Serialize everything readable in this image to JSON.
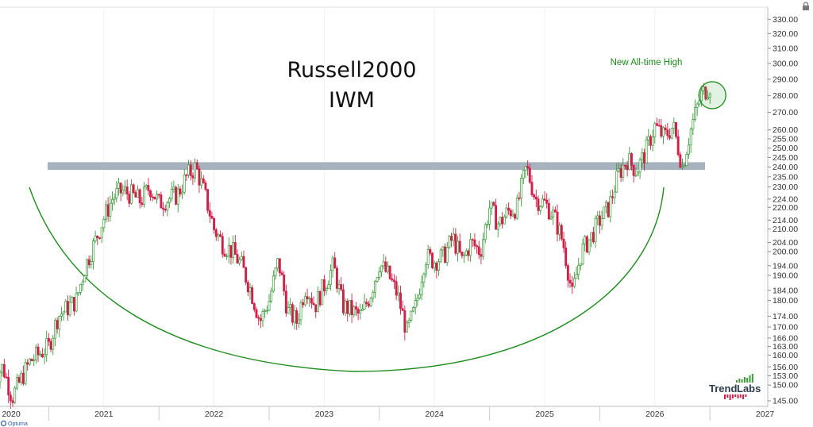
{
  "chart_data": {
    "type": "candlestick",
    "title": "Russell2000",
    "subtitle": "IWM",
    "x_labels": [
      "2020",
      "2021",
      "2022",
      "2023",
      "2024",
      "2025",
      "2026",
      "2027"
    ],
    "y_ticks": [
      145,
      150,
      153,
      156,
      160,
      163,
      166,
      170,
      174,
      180,
      184,
      190,
      194,
      200,
      204,
      210,
      214,
      220,
      224,
      230,
      235,
      240,
      245,
      250,
      255,
      260,
      270,
      280,
      290,
      300,
      310,
      320,
      330
    ],
    "y_tick_labels": [
      "145.00",
      "150.00",
      "153.00",
      "156.00",
      "160.00",
      "163.00",
      "166.00",
      "170.00",
      "174.00",
      "180.00",
      "184.00",
      "190.00",
      "194.00",
      "200.00",
      "204.00",
      "210.00",
      "214.00",
      "220.00",
      "224.00",
      "230.00",
      "235.00",
      "240.00",
      "245.00",
      "250.00",
      "255.00",
      "260.00",
      "270.00",
      "280.00",
      "290.00",
      "300.00",
      "310.00",
      "320.00",
      "330.00"
    ],
    "ylim": [
      144,
      333
    ],
    "scale": "log",
    "resistance_band": [
      238.5,
      242.5
    ],
    "annotation": "New All-time High",
    "price_path": [
      [
        "2020-01",
        152
      ],
      [
        "2020-02",
        156
      ],
      [
        "2020-03",
        146
      ],
      [
        "2020-05",
        158
      ],
      [
        "2020-07",
        163
      ],
      [
        "2020-08",
        174
      ],
      [
        "2020-10",
        180
      ],
      [
        "2020-11",
        194
      ],
      [
        "2020-12",
        204
      ],
      [
        "2021-01",
        215
      ],
      [
        "2021-02",
        225
      ],
      [
        "2021-03",
        228
      ],
      [
        "2021-04",
        226
      ],
      [
        "2021-05",
        223
      ],
      [
        "2021-06",
        230
      ],
      [
        "2021-07",
        222
      ],
      [
        "2021-08",
        224
      ],
      [
        "2021-09",
        226
      ],
      [
        "2021-10",
        235
      ],
      [
        "2021-11",
        240
      ],
      [
        "2021-12",
        226
      ],
      [
        "2022-01",
        210
      ],
      [
        "2022-02",
        203
      ],
      [
        "2022-03",
        200
      ],
      [
        "2022-04",
        194
      ],
      [
        "2022-05",
        184
      ],
      [
        "2022-06",
        172
      ],
      [
        "2022-07",
        180
      ],
      [
        "2022-08",
        196
      ],
      [
        "2022-09",
        176
      ],
      [
        "2022-10",
        172
      ],
      [
        "2022-11",
        186
      ],
      [
        "2022-12",
        178
      ],
      [
        "2023-01",
        186
      ],
      [
        "2023-02",
        194
      ],
      [
        "2023-03",
        178
      ],
      [
        "2023-04",
        176
      ],
      [
        "2023-05",
        174
      ],
      [
        "2023-06",
        182
      ],
      [
        "2023-07",
        195
      ],
      [
        "2023-08",
        190
      ],
      [
        "2023-09",
        182
      ],
      [
        "2023-10",
        168
      ],
      [
        "2023-11",
        178
      ],
      [
        "2023-12",
        198
      ],
      [
        "2024-01",
        196
      ],
      [
        "2024-02",
        198
      ],
      [
        "2024-03",
        206
      ],
      [
        "2024-04",
        196
      ],
      [
        "2024-05",
        204
      ],
      [
        "2024-06",
        200
      ],
      [
        "2024-07",
        220
      ],
      [
        "2024-08",
        212
      ],
      [
        "2024-09",
        218
      ],
      [
        "2024-10",
        220
      ],
      [
        "2024-11",
        240
      ],
      [
        "2024-12",
        224
      ],
      [
        "2025-01",
        222
      ],
      [
        "2025-02",
        216
      ],
      [
        "2025-03",
        204
      ],
      [
        "2025-04",
        182
      ],
      [
        "2025-05",
        200
      ],
      [
        "2025-06",
        206
      ],
      [
        "2025-07",
        214
      ],
      [
        "2025-08",
        220
      ],
      [
        "2025-09",
        236
      ],
      [
        "2025-10",
        244
      ],
      [
        "2025-11",
        238
      ],
      [
        "2025-12",
        248
      ],
      [
        "2026-01",
        262
      ],
      [
        "2026-02",
        256
      ],
      [
        "2026-03",
        262
      ],
      [
        "2026-04",
        240
      ],
      [
        "2026-05",
        262
      ],
      [
        "2026-06",
        280
      ],
      [
        "2026-07",
        286
      ]
    ]
  },
  "logo": {
    "brand_a": "Trend",
    "brand_b": "Labs"
  },
  "footer": {
    "brand": "Optuma"
  },
  "colors": {
    "up": "#3a9a3a",
    "down": "#d0204a",
    "arc": "#1e8c1e",
    "band": "#a7b2bf",
    "grid": "#e6e6e6"
  }
}
